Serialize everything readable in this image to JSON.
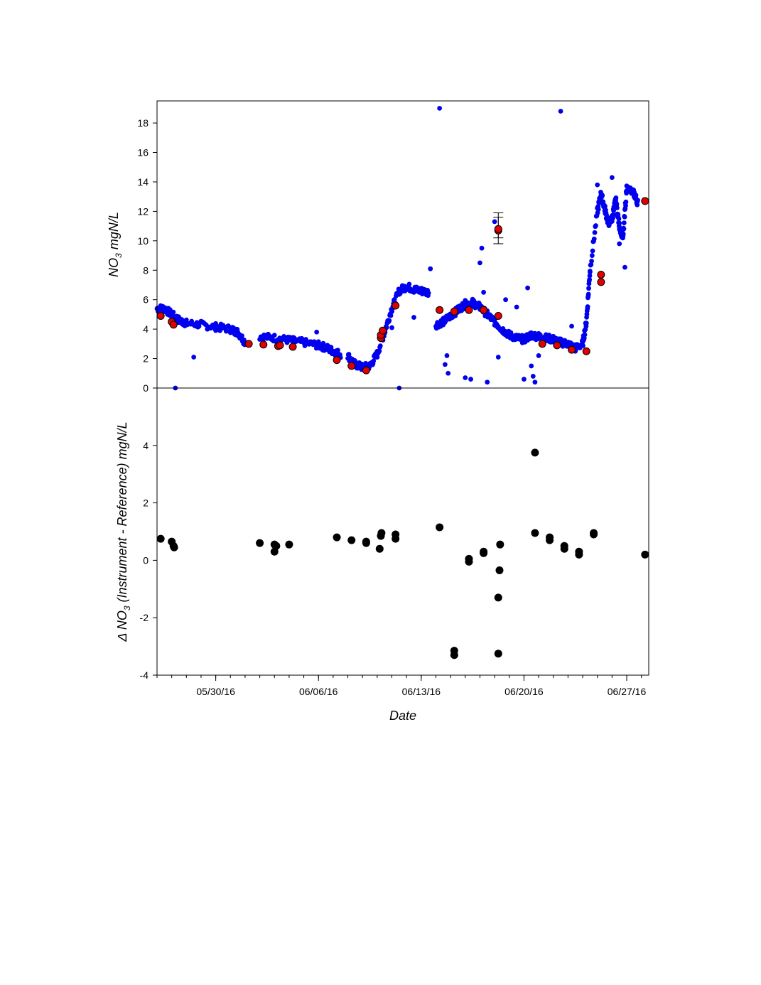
{
  "chart_data": [
    {
      "panel": "top",
      "type": "scatter",
      "ylabel_main": "NO",
      "ylabel_sub": "3",
      "ylabel_rest": " mgN/L",
      "ylim": [
        0,
        19.5
      ],
      "yticks": [
        "0",
        "2",
        "4",
        "6",
        "8",
        "10",
        "12",
        "14",
        "16",
        "18"
      ],
      "ytick_values": [
        0,
        2,
        4,
        6,
        8,
        10,
        12,
        14,
        16,
        18
      ],
      "series": [
        {
          "marker_color": "#0000ee",
          "style": "continuous-instrument-trace",
          "segments": [
            [
              [
                "2016-05-26T00:00",
                5.4
              ],
              [
                "2016-05-26T12:00",
                5.4
              ],
              [
                "2016-05-27T00:00",
                5.0
              ],
              [
                "2016-05-27T12:00",
                4.6
              ],
              [
                "2016-05-28T00:00",
                4.4
              ],
              [
                "2016-05-29T00:00",
                4.3
              ],
              [
                "2016-05-30T00:00",
                4.15
              ],
              [
                "2016-05-31T00:00",
                4.0
              ],
              [
                "2016-05-31T12:00",
                3.8
              ],
              [
                "2016-06-01T00:00",
                3.1
              ]
            ],
            [
              [
                "2016-06-02T00:00",
                3.5
              ],
              [
                "2016-06-03T00:00",
                3.4
              ],
              [
                "2016-06-04T00:00",
                3.25
              ],
              [
                "2016-06-05T00:00",
                3.1
              ],
              [
                "2016-06-06T00:00",
                2.9
              ],
              [
                "2016-06-06T12:00",
                2.75
              ],
              [
                "2016-06-07T00:00",
                2.5
              ],
              [
                "2016-06-07T12:00",
                2.3
              ]
            ],
            [
              [
                "2016-06-08T00:00",
                2.2
              ],
              [
                "2016-06-08T12:00",
                1.6
              ],
              [
                "2016-06-09T00:00",
                1.4
              ],
              [
                "2016-06-09T12:00",
                1.5
              ],
              [
                "2016-06-10T00:00",
                2.3
              ],
              [
                "2016-06-10T12:00",
                3.8
              ],
              [
                "2016-06-11T00:00",
                5.4
              ],
              [
                "2016-06-11T12:00",
                6.6
              ],
              [
                "2016-06-12T00:00",
                6.9
              ],
              [
                "2016-06-12T12:00",
                6.7
              ],
              [
                "2016-06-13T00:00",
                6.6
              ],
              [
                "2016-06-13T12:00",
                6.5
              ]
            ],
            [
              [
                "2016-06-14T00:00",
                4.3
              ],
              [
                "2016-06-14T12:00",
                4.5
              ],
              [
                "2016-06-15T00:00",
                4.9
              ],
              [
                "2016-06-15T12:00",
                5.3
              ],
              [
                "2016-06-16T00:00",
                5.7
              ],
              [
                "2016-06-16T12:00",
                5.8
              ],
              [
                "2016-06-17T00:00",
                5.5
              ],
              [
                "2016-06-17T12:00",
                5.0
              ],
              [
                "2016-06-18T00:00",
                4.5
              ],
              [
                "2016-06-18T12:00",
                4.0
              ],
              [
                "2016-06-19T00:00",
                3.6
              ],
              [
                "2016-06-19T12:00",
                3.4
              ],
              [
                "2016-06-20T00:00",
                3.3
              ],
              [
                "2016-06-20T12:00",
                3.6
              ],
              [
                "2016-06-21T00:00",
                3.5
              ],
              [
                "2016-06-21T12:00",
                3.4
              ],
              [
                "2016-06-22T00:00",
                3.3
              ],
              [
                "2016-06-22T12:00",
                3.1
              ],
              [
                "2016-06-23T00:00",
                3.0
              ],
              [
                "2016-06-23T12:00",
                2.7
              ],
              [
                "2016-06-24T00:00",
                3.0
              ],
              [
                "2016-06-24T06:00",
                4.5
              ],
              [
                "2016-06-24T12:00",
                8.0
              ],
              [
                "2016-06-25T00:00",
                12.0
              ],
              [
                "2016-06-25T06:00",
                13.2
              ],
              [
                "2016-06-25T12:00",
                12.2
              ],
              [
                "2016-06-25T18:00",
                11.2
              ],
              [
                "2016-06-26T00:00",
                11.5
              ],
              [
                "2016-06-26T06:00",
                12.8
              ],
              [
                "2016-06-26T12:00",
                11.0
              ],
              [
                "2016-06-26T18:00",
                10.2
              ],
              [
                "2016-06-27T00:00",
                13.6
              ],
              [
                "2016-06-27T12:00",
                13.2
              ],
              [
                "2016-06-27T18:00",
                12.6
              ]
            ]
          ],
          "scatter": [
            [
              "2016-05-27T06:00",
              0.0
            ],
            [
              "2016-05-28T12:00",
              2.1
            ],
            [
              "2016-06-05T21:00",
              3.8
            ],
            [
              "2016-06-11T12:00",
              0.0
            ],
            [
              "2016-06-12T12:00",
              4.8
            ],
            [
              "2016-06-11T00:00",
              4.1
            ],
            [
              "2016-06-13T15:00",
              8.1
            ],
            [
              "2016-06-14T06:00",
              19.0
            ],
            [
              "2016-06-14T18:00",
              2.2
            ],
            [
              "2016-06-14T15:00",
              1.6
            ],
            [
              "2016-06-14T20:00",
              1.0
            ],
            [
              "2016-06-16T00:00",
              0.7
            ],
            [
              "2016-06-16T09:00",
              0.6
            ],
            [
              "2016-06-17T00:00",
              8.5
            ],
            [
              "2016-06-17T03:00",
              9.5
            ],
            [
              "2016-06-17T12:00",
              0.4
            ],
            [
              "2016-06-18T00:00",
              11.3
            ],
            [
              "2016-06-17T06:00",
              6.5
            ],
            [
              "2016-06-18T06:00",
              2.1
            ],
            [
              "2016-06-18T18:00",
              6.0
            ],
            [
              "2016-06-19T12:00",
              5.5
            ],
            [
              "2016-06-20T00:00",
              0.6
            ],
            [
              "2016-06-20T06:00",
              6.8
            ],
            [
              "2016-06-20T12:00",
              1.5
            ],
            [
              "2016-06-20T15:00",
              0.8
            ],
            [
              "2016-06-20T18:00",
              0.4
            ],
            [
              "2016-06-21T00:00",
              2.2
            ],
            [
              "2016-06-22T12:00",
              18.8
            ],
            [
              "2016-06-23T06:00",
              4.2
            ],
            [
              "2016-06-26T00:00",
              14.3
            ],
            [
              "2016-06-26T21:00",
              8.2
            ],
            [
              "2016-06-25T00:00",
              13.8
            ],
            [
              "2016-06-26T12:00",
              9.8
            ]
          ]
        },
        {
          "marker_color": "#e00000",
          "style": "reference-points-with-error-bars",
          "points": [
            [
              "2016-05-26T06:00",
              4.9
            ],
            [
              "2016-05-27T00:00",
              4.5
            ],
            [
              "2016-05-27T03:00",
              4.3
            ],
            [
              "2016-06-01T06:00",
              3.0
            ],
            [
              "2016-06-02T06:00",
              2.95
            ],
            [
              "2016-06-03T06:00",
              2.85
            ],
            [
              "2016-06-03T09:00",
              2.9
            ],
            [
              "2016-06-04T06:00",
              2.8
            ],
            [
              "2016-06-07T06:00",
              1.9
            ],
            [
              "2016-06-08T06:00",
              1.5
            ],
            [
              "2016-06-09T06:00",
              1.2
            ],
            [
              "2016-06-10T06:00",
              3.4
            ],
            [
              "2016-06-10T06:01",
              3.6
            ],
            [
              "2016-06-10T09:00",
              3.9
            ],
            [
              "2016-06-11T06:00",
              5.6
            ],
            [
              "2016-06-14T06:00",
              5.3
            ],
            [
              "2016-06-15T06:00",
              5.2
            ],
            [
              "2016-06-16T06:00",
              5.3
            ],
            [
              "2016-06-17T06:00",
              5.3
            ],
            [
              "2016-06-18T06:00",
              10.7
            ],
            [
              "2016-06-18T06:01",
              10.8
            ],
            [
              "2016-06-18T06:02",
              4.9
            ],
            [
              "2016-06-21T06:00",
              3.0
            ],
            [
              "2016-06-22T06:00",
              2.9
            ],
            [
              "2016-06-23T06:00",
              2.6
            ],
            [
              "2016-06-24T06:00",
              2.5
            ],
            [
              "2016-06-25T06:00",
              7.7
            ],
            [
              "2016-06-25T06:01",
              7.2
            ],
            [
              "2016-06-28T06:00",
              12.7
            ]
          ],
          "error_bars": [
            [
              "2016-06-18T06:00",
              9.8,
              11.9
            ],
            [
              "2016-06-18T06:01",
              10.2,
              11.6
            ]
          ]
        }
      ]
    },
    {
      "panel": "bottom",
      "type": "scatter",
      "ylabel_prefix": "Δ NO",
      "ylabel_sub": "3",
      "ylabel_rest": " (Instrument - Reference) mgN/L",
      "xlabel": "Date",
      "ylim": [
        -4,
        6
      ],
      "yticks": [
        "-4",
        "-2",
        "0",
        "2",
        "4"
      ],
      "ytick_values": [
        -4,
        -2,
        0,
        2,
        4
      ],
      "xlim": [
        "2016-05-26T00:00",
        "2016-06-28T12:00"
      ],
      "xticks": [
        "05/30/16",
        "06/06/16",
        "06/13/16",
        "06/20/16",
        "06/27/16"
      ],
      "xtick_values": [
        "2016-05-30T00:00",
        "2016-06-06T00:00",
        "2016-06-13T00:00",
        "2016-06-20T00:00",
        "2016-06-27T00:00"
      ],
      "series": [
        {
          "marker_color": "#000000",
          "points": [
            [
              "2016-05-26T06:00",
              0.75
            ],
            [
              "2016-05-27T00:00",
              0.65
            ],
            [
              "2016-05-27T03:00",
              0.5
            ],
            [
              "2016-05-27T04:00",
              0.45
            ],
            [
              "2016-06-02T00:00",
              0.6
            ],
            [
              "2016-06-03T00:00",
              0.55
            ],
            [
              "2016-06-03T00:01",
              0.3
            ],
            [
              "2016-06-03T03:00",
              0.5
            ],
            [
              "2016-06-04T00:00",
              0.55
            ],
            [
              "2016-06-07T06:00",
              0.8
            ],
            [
              "2016-06-08T06:00",
              0.7
            ],
            [
              "2016-06-09T06:00",
              0.65
            ],
            [
              "2016-06-09T06:01",
              0.6
            ],
            [
              "2016-06-10T06:00",
              0.85
            ],
            [
              "2016-06-10T07:00",
              0.95
            ],
            [
              "2016-06-10T04:00",
              0.4
            ],
            [
              "2016-06-11T06:00",
              0.9
            ],
            [
              "2016-06-11T06:01",
              0.75
            ],
            [
              "2016-06-14T06:00",
              1.15
            ],
            [
              "2016-06-15T06:00",
              -3.15
            ],
            [
              "2016-06-15T06:01",
              -3.3
            ],
            [
              "2016-06-16T06:00",
              0.05
            ],
            [
              "2016-06-16T06:01",
              -0.05
            ],
            [
              "2016-06-17T06:00",
              0.25
            ],
            [
              "2016-06-17T06:01",
              0.3
            ],
            [
              "2016-06-18T06:00",
              -1.3
            ],
            [
              "2016-06-18T06:01",
              -3.25
            ],
            [
              "2016-06-18T08:00",
              -0.35
            ],
            [
              "2016-06-18T09:00",
              0.55
            ],
            [
              "2016-06-20T18:00",
              3.75
            ],
            [
              "2016-06-20T18:01",
              0.95
            ],
            [
              "2016-06-21T18:00",
              0.8
            ],
            [
              "2016-06-21T18:01",
              0.7
            ],
            [
              "2016-06-22T18:00",
              0.5
            ],
            [
              "2016-06-22T18:01",
              0.4
            ],
            [
              "2016-06-23T18:00",
              0.3
            ],
            [
              "2016-06-23T18:01",
              0.2
            ],
            [
              "2016-06-24T18:00",
              0.9
            ],
            [
              "2016-06-24T18:01",
              0.95
            ],
            [
              "2016-06-28T06:00",
              0.2
            ]
          ]
        }
      ]
    }
  ]
}
